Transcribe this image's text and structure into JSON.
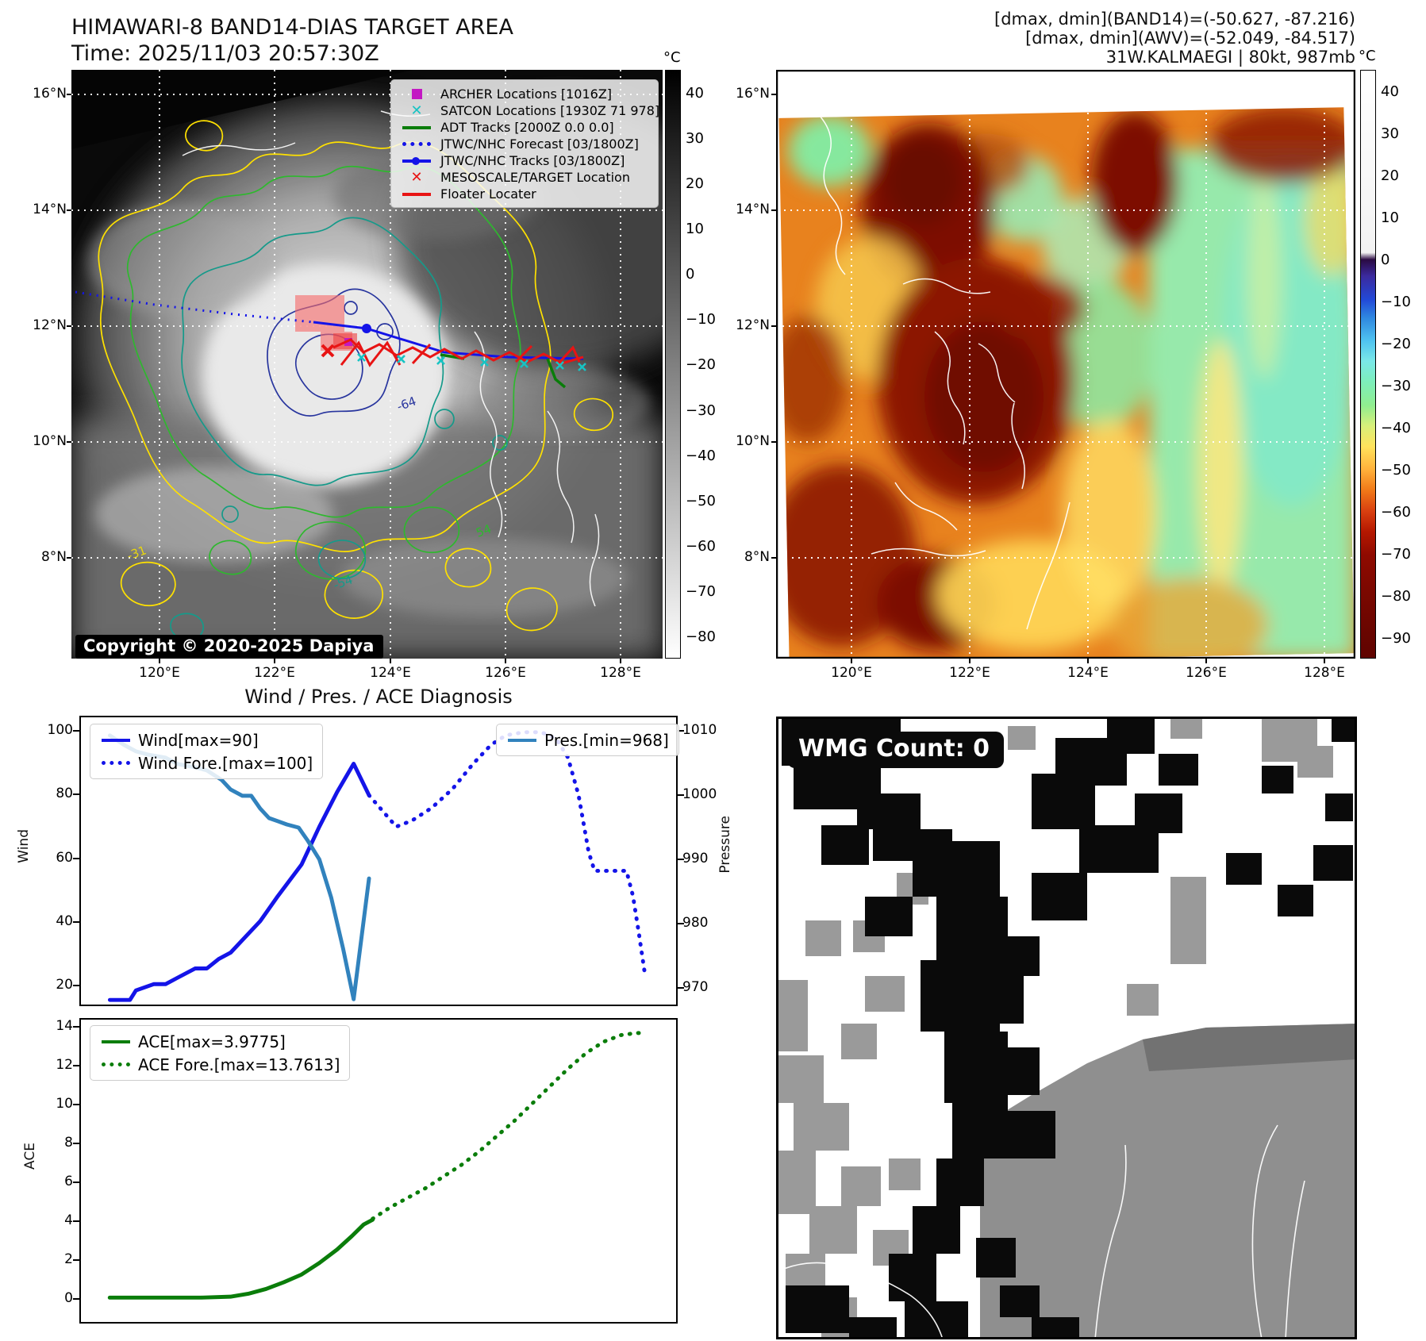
{
  "header_left": {
    "title": "HIMAWARI-8 BAND14-DIAS TARGET AREA",
    "time": "Time: 2025/11/03 20:57:30Z"
  },
  "header_right": {
    "line1": "[dmax, dmin](BAND14)=(-50.627, -87.216)",
    "line2": "[dmax, dmin](AWV)=(-52.049, -84.517)",
    "line3": "31W.KALMAEGI | 80kt, 987mb"
  },
  "band14_map": {
    "lat_ticks": [
      "16°N",
      "14°N",
      "12°N",
      "10°N",
      "8°N"
    ],
    "lon_ticks": [
      "120°E",
      "122°E",
      "124°E",
      "126°E",
      "128°E"
    ],
    "colorbar": {
      "unit": "°C",
      "ticks": [
        "40",
        "30",
        "20",
        "10",
        "0",
        "−10",
        "−20",
        "−30",
        "−40",
        "−50",
        "−60",
        "−70",
        "−80"
      ]
    },
    "legend": [
      {
        "label": "ARCHER Locations [1016Z]",
        "marker": "square",
        "color": "#c318c3"
      },
      {
        "label": "SATCON Locations [1930Z 71 978]",
        "marker": "x",
        "color": "#17c3c3"
      },
      {
        "label": "ADT Tracks [2000Z 0.0 0.0]",
        "marker": "solid",
        "color": "#0a7d0a"
      },
      {
        "label": "JTWC/NHC Forecast [03/1800Z]",
        "marker": "dotted",
        "color": "#1414e8"
      },
      {
        "label": "JTWC/NHC Tracks [03/1800Z]",
        "marker": "line-circle",
        "color": "#1414e8"
      },
      {
        "label": "MESOSCALE/TARGET Location",
        "marker": "x",
        "color": "#e81414"
      },
      {
        "label": "Floater Locater",
        "marker": "solid",
        "color": "#e81414"
      }
    ],
    "contour_labels": [
      {
        "text": "-31",
        "color": "#e8d50f"
      },
      {
        "text": "54",
        "color": "#2eb82e"
      },
      {
        "text": "-54",
        "color": "#159a8a"
      },
      {
        "text": "-64",
        "color": "#28359e"
      }
    ],
    "copyright": "Copyright © 2020-2025 Dapiya"
  },
  "awv_map": {
    "lat_ticks": [
      "16°N",
      "14°N",
      "12°N",
      "10°N",
      "8°N"
    ],
    "lon_ticks": [
      "120°E",
      "122°E",
      "124°E",
      "126°E",
      "128°E"
    ],
    "colorbar": {
      "unit": "°C",
      "ticks": [
        "40",
        "30",
        "20",
        "10",
        "0",
        "−10",
        "−20",
        "−30",
        "−40",
        "−50",
        "−60",
        "−70",
        "−80",
        "−90"
      ]
    }
  },
  "wmg_panel": {
    "label": "WMG Count: 0"
  },
  "chart_data": [
    {
      "type": "line",
      "title": "Wind / Pres. / ACE Diagnosis",
      "ylabel_left": "Wind",
      "ylabel_right": "Pressure",
      "yticks_left": [
        "100",
        "80",
        "60",
        "40",
        "20"
      ],
      "yticks_right": [
        "1010",
        "1000",
        "990",
        "980",
        "970"
      ],
      "legend_left": [
        {
          "label": "Wind[max=90]",
          "style": "solid",
          "color": "#1414e8"
        },
        {
          "label": "Wind Fore.[max=100]",
          "style": "dotted",
          "color": "#1414e8"
        }
      ],
      "legend_right": [
        {
          "label": "Pres.[min=968]",
          "style": "solid",
          "color": "#3182bd"
        }
      ],
      "axes": {
        "wind_range": [
          13.5,
          104.74
        ],
        "pressure_range": [
          966.8,
          1012.35
        ],
        "grid": false,
        "x_labels_shown": false
      },
      "series": [
        {
          "name": "Wind[max=90]",
          "axis": "wind",
          "style": "solid",
          "color": "#1414e8",
          "x": [
            0.046,
            0.08,
            0.09,
            0.12,
            0.14,
            0.16,
            0.19,
            0.21,
            0.23,
            0.25,
            0.27,
            0.3,
            0.33,
            0.37,
            0.4,
            0.43,
            0.458,
            0.484
          ],
          "y": [
            15,
            15,
            18,
            20,
            20,
            22,
            25,
            25,
            28,
            30,
            34,
            40,
            48,
            58,
            70,
            81,
            90,
            80
          ]
        },
        {
          "name": "Wind Fore.[max=100]",
          "axis": "wind",
          "style": "dotted",
          "color": "#1414e8",
          "x": [
            0.484,
            0.53,
            0.557,
            0.59,
            0.625,
            0.66,
            0.69,
            0.715,
            0.745,
            0.775,
            0.8,
            0.82,
            0.838,
            0.855,
            0.865,
            0.919,
            0.93,
            0.94,
            0.951
          ],
          "y": [
            80,
            70,
            72,
            76,
            82,
            90,
            96,
            99,
            100,
            100,
            98,
            92,
            80,
            62,
            56,
            56,
            48,
            36,
            22
          ]
        },
        {
          "name": "Pres.[min=968]",
          "axis": "pressure",
          "style": "solid",
          "color": "#3182bd",
          "x": [
            0.046,
            0.07,
            0.09,
            0.11,
            0.14,
            0.16,
            0.19,
            0.21,
            0.235,
            0.25,
            0.27,
            0.285,
            0.3,
            0.315,
            0.33,
            0.345,
            0.365,
            0.38,
            0.4,
            0.42,
            0.44,
            0.458,
            0.484
          ],
          "y": [
            1009.5,
            1008,
            1007,
            1006.5,
            1006,
            1005,
            1004.5,
            1004,
            1002.5,
            1001,
            1000,
            1000,
            998,
            996.5,
            996,
            995.5,
            995,
            993,
            990,
            984,
            976,
            968,
            987
          ]
        }
      ]
    },
    {
      "type": "line",
      "title": "",
      "ylabel_left": "ACE",
      "yticks_left": [
        "0",
        "2",
        "4",
        "6",
        "8",
        "10",
        "12",
        "14"
      ],
      "legend_left": [
        {
          "label": "ACE[max=3.9775]",
          "style": "solid",
          "color": "#0a7d0a"
        },
        {
          "label": "ACE Fore.[max=13.7613]",
          "style": "dotted",
          "color": "#0a7d0a"
        }
      ],
      "axes": {
        "ace_range": [
          -1.27,
          14.45
        ],
        "grid": false,
        "x_labels_shown": false
      },
      "series": [
        {
          "name": "ACE[max=3.9775]",
          "axis": "ace",
          "style": "solid",
          "color": "#0a7d0a",
          "x": [
            0.046,
            0.1,
            0.15,
            0.2,
            0.25,
            0.28,
            0.31,
            0.34,
            0.37,
            0.4,
            0.43,
            0.455,
            0.475,
            0.49
          ],
          "y": [
            0,
            0,
            0,
            0,
            0.05,
            0.2,
            0.45,
            0.8,
            1.2,
            1.8,
            2.5,
            3.2,
            3.8,
            4.05
          ]
        },
        {
          "name": "ACE Fore.[max=13.7613]",
          "axis": "ace",
          "style": "dotted",
          "color": "#0a7d0a",
          "x": [
            0.49,
            0.52,
            0.55,
            0.58,
            0.61,
            0.64,
            0.67,
            0.7,
            0.73,
            0.76,
            0.79,
            0.82,
            0.85,
            0.88,
            0.91,
            0.935,
            0.951
          ],
          "y": [
            4.1,
            4.7,
            5.2,
            5.7,
            6.3,
            6.9,
            7.6,
            8.4,
            9.2,
            10.1,
            11.0,
            11.9,
            12.7,
            13.3,
            13.65,
            13.75,
            13.76
          ]
        }
      ]
    }
  ]
}
